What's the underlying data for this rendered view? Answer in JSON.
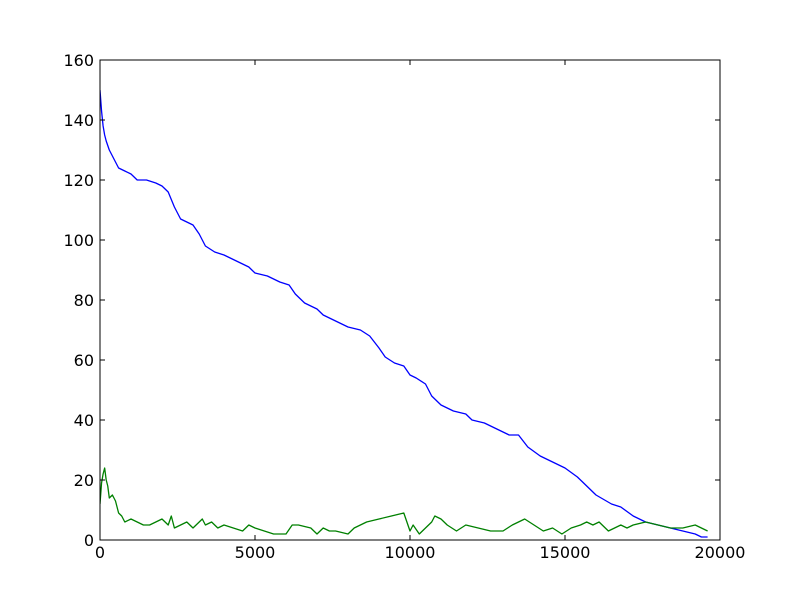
{
  "chart_data": {
    "type": "line",
    "title": "",
    "xlabel": "",
    "ylabel": "",
    "xlim": [
      0,
      20000
    ],
    "ylim": [
      0,
      160
    ],
    "xticks": [
      0,
      5000,
      10000,
      15000,
      20000
    ],
    "yticks": [
      0,
      20,
      40,
      60,
      80,
      100,
      120,
      140,
      160
    ],
    "xtick_labels": [
      "0",
      "5000",
      "10000",
      "15000",
      "20000"
    ],
    "ytick_labels": [
      "0",
      "20",
      "40",
      "60",
      "80",
      "100",
      "120",
      "140",
      "160"
    ],
    "grid": false,
    "legend": "none",
    "series": [
      {
        "color": "#0000ff",
        "x": [
          0,
          50,
          100,
          150,
          200,
          300,
          400,
          500,
          600,
          800,
          1000,
          1200,
          1500,
          1800,
          2000,
          2200,
          2400,
          2600,
          2800,
          3000,
          3200,
          3400,
          3700,
          4000,
          4400,
          4800,
          5000,
          5400,
          5800,
          6100,
          6300,
          6600,
          7000,
          7200,
          7600,
          8000,
          8400,
          8700,
          9000,
          9200,
          9500,
          9800,
          10000,
          10200,
          10500,
          10700,
          11000,
          11400,
          11800,
          12000,
          12400,
          12800,
          13200,
          13500,
          13800,
          14200,
          14600,
          15000,
          15400,
          15800,
          16000,
          16500,
          16800,
          17200,
          17600,
          18000,
          18400,
          18800,
          19200,
          19400,
          19600
        ],
        "y": [
          150,
          143,
          138,
          135,
          133,
          130,
          128,
          126,
          124,
          123,
          122,
          120,
          120,
          119,
          118,
          116,
          111,
          107,
          106,
          105,
          102,
          98,
          96,
          95,
          93,
          91,
          89,
          88,
          86,
          85,
          82,
          79,
          77,
          75,
          73,
          71,
          70,
          68,
          64,
          61,
          59,
          58,
          55,
          54,
          52,
          48,
          45,
          43,
          42,
          40,
          39,
          37,
          35,
          35,
          31,
          28,
          26,
          24,
          21,
          17,
          15,
          12,
          11,
          8,
          6,
          5,
          4,
          3,
          2,
          1,
          1
        ]
      },
      {
        "color": "#008000",
        "x": [
          0,
          50,
          100,
          150,
          200,
          250,
          300,
          400,
          500,
          550,
          600,
          700,
          800,
          1000,
          1200,
          1400,
          1600,
          1800,
          2000,
          2200,
          2300,
          2400,
          2600,
          2800,
          3000,
          3200,
          3300,
          3400,
          3600,
          3800,
          4000,
          4300,
          4600,
          4800,
          5000,
          5300,
          5600,
          6000,
          6200,
          6400,
          6800,
          7000,
          7200,
          7400,
          7600,
          8000,
          8200,
          8600,
          9000,
          9400,
          9800,
          10000,
          10100,
          10300,
          10500,
          10700,
          10800,
          11000,
          11200,
          11500,
          11800,
          12200,
          12600,
          13000,
          13300,
          13500,
          13700,
          14000,
          14300,
          14600,
          14900,
          15200,
          15500,
          15700,
          15900,
          16100,
          16400,
          16800,
          17000,
          17200,
          17600,
          18000,
          18400,
          18800,
          19200,
          19600
        ],
        "y": [
          12,
          19,
          22,
          24,
          20,
          18,
          14,
          15,
          13,
          11,
          9,
          8,
          6,
          7,
          6,
          5,
          5,
          6,
          7,
          5,
          8,
          4,
          5,
          6,
          4,
          6,
          7,
          5,
          6,
          4,
          5,
          4,
          3,
          5,
          4,
          3,
          2,
          2,
          5,
          5,
          4,
          2,
          4,
          3,
          3,
          2,
          4,
          6,
          7,
          8,
          9,
          3,
          5,
          2,
          4,
          6,
          8,
          7,
          5,
          3,
          5,
          4,
          3,
          3,
          5,
          6,
          7,
          5,
          3,
          4,
          2,
          4,
          5,
          6,
          5,
          6,
          3,
          5,
          4,
          5,
          6,
          5,
          4,
          4,
          5,
          3
        ]
      }
    ]
  }
}
